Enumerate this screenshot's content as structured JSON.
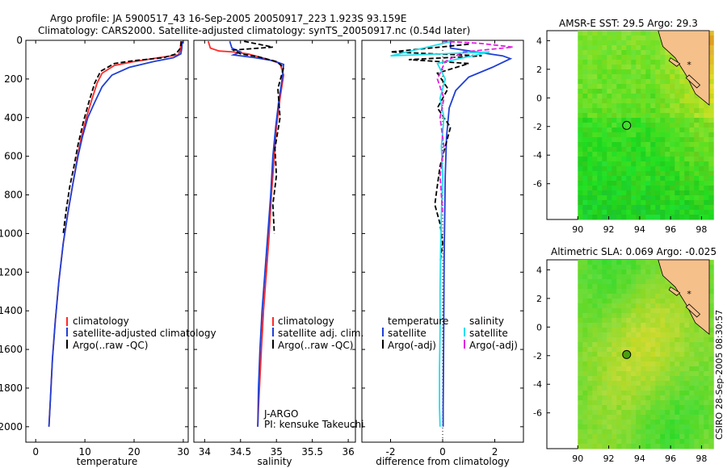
{
  "header": {
    "line1": "Argo profile: JA 5900517_43 16-Sep-2005 20050917_223 1.923S 93.159E",
    "line2": "Climatology: CARS2000. Satellite-adjusted climatology: synTS_20050917.nc (0.54d later)"
  },
  "side_label": "CSIRO 28-Sep-2005 08:30:57",
  "colors": {
    "climatology": "#ff2a2a",
    "satellite": "#1f3fd6",
    "argo": "#000000",
    "cyan": "#1fe0ee",
    "magenta": "#e020e0"
  },
  "chart_data": [
    {
      "type": "line",
      "id": "temperature",
      "xlabel": "temperature",
      "ylabel": "",
      "xlim": [
        -2,
        31
      ],
      "ylim": [
        2080,
        0
      ],
      "xticks": [
        0,
        10,
        20,
        30
      ],
      "yticks": [
        0,
        200,
        400,
        600,
        800,
        1000,
        1200,
        1400,
        1600,
        1800,
        2000
      ],
      "legend": [
        "climatology",
        "satellite-adjusted climatology",
        "Argo(..raw -QC)"
      ],
      "series": [
        {
          "name": "climatology",
          "color": "red",
          "style": "solid",
          "x": [
            29.5,
            29.4,
            29.0,
            25,
            20,
            16,
            13.5,
            12.5,
            11.5,
            10.3,
            9.3,
            8.5,
            7.5,
            6.5,
            5.6,
            4.7,
            4.0,
            3.4,
            3.0,
            2.7
          ],
          "y": [
            5,
            50,
            75,
            90,
            110,
            130,
            170,
            220,
            300,
            400,
            500,
            600,
            750,
            900,
            1050,
            1250,
            1450,
            1650,
            1850,
            2000
          ]
        },
        {
          "name": "satellite-adjusted climatology",
          "color": "blue",
          "style": "solid",
          "x": [
            29.8,
            29.7,
            29.5,
            28,
            24,
            19,
            15.5,
            13.5,
            12.0,
            10.6,
            9.5,
            8.6,
            7.5,
            6.5,
            5.6,
            4.7,
            4.0,
            3.4,
            3.0,
            2.7
          ],
          "y": [
            5,
            40,
            70,
            90,
            110,
            140,
            180,
            240,
            320,
            400,
            500,
            600,
            750,
            900,
            1050,
            1250,
            1450,
            1650,
            1850,
            2000
          ]
        },
        {
          "name": "Argo(..raw -QC)",
          "color": "black",
          "style": "dashed",
          "x": [
            29.6,
            29.4,
            28.5,
            26,
            20,
            16,
            13.2,
            12.0,
            10.8,
            9.7,
            8.6,
            7.8,
            6.9,
            6.2,
            5.6
          ],
          "y": [
            5,
            40,
            70,
            90,
            105,
            120,
            160,
            220,
            320,
            420,
            540,
            650,
            760,
            880,
            1000
          ]
        }
      ]
    },
    {
      "type": "line",
      "id": "salinity",
      "xlabel": "salinity",
      "xlim": [
        33.85,
        36.1
      ],
      "ylim": [
        2080,
        0
      ],
      "xticks": [
        34,
        34.5,
        35,
        35.5,
        36
      ],
      "legend": [
        "climatology",
        "satellite adj. clim.",
        "Argo(..raw -QC)"
      ],
      "annotation": [
        "J-ARGO",
        "PI: kensuke Takeuchi"
      ],
      "series": [
        {
          "name": "climatology",
          "color": "red",
          "style": "solid",
          "x": [
            34.05,
            34.08,
            34.2,
            34.4,
            34.6,
            34.85,
            35.05,
            35.1,
            35.05,
            35.0,
            34.97,
            34.93,
            34.9,
            34.86,
            34.82,
            34.79,
            34.77,
            34.75,
            34.74
          ],
          "y": [
            5,
            40,
            55,
            60,
            70,
            95,
            120,
            180,
            300,
            450,
            600,
            800,
            1000,
            1200,
            1400,
            1600,
            1750,
            1900,
            2000
          ]
        },
        {
          "name": "satellite adj. clim.",
          "color": "blue",
          "style": "solid",
          "x": [
            34.35,
            34.38,
            34.5,
            34.4,
            34.7,
            34.95,
            35.1,
            35.08,
            35.03,
            34.99,
            34.95,
            34.92,
            34.88,
            34.84,
            34.8,
            34.77,
            34.75,
            34.74
          ],
          "y": [
            5,
            40,
            60,
            75,
            90,
            105,
            125,
            200,
            320,
            450,
            600,
            800,
            1000,
            1200,
            1400,
            1600,
            1800,
            2000
          ]
        },
        {
          "name": "Argo(..raw -QC)",
          "color": "black",
          "style": "dashed",
          "x": [
            34.55,
            34.75,
            34.95,
            34.4,
            34.5,
            34.75,
            35.0,
            35.1,
            35.02,
            35.05,
            34.98,
            35.0,
            34.95,
            34.97
          ],
          "y": [
            5,
            20,
            35,
            50,
            70,
            85,
            110,
            140,
            250,
            400,
            560,
            700,
            850,
            1000
          ]
        }
      ]
    },
    {
      "type": "line",
      "id": "difference",
      "xlabel": "difference from climatology",
      "xlim": [
        -3.1,
        3.1
      ],
      "ylim": [
        2080,
        0
      ],
      "xticks": [
        -2,
        0,
        2
      ],
      "legend_left_title": "temperature",
      "legend_right_title": "salinity",
      "legend": [
        "satellite",
        "Argo(-adj)",
        "satellite",
        "Argo(-adj)"
      ],
      "series": [
        {
          "name": "temperature satellite",
          "color": "blue",
          "style": "solid",
          "x": [
            0.3,
            0.3,
            2.3,
            2.6,
            1.9,
            1.0,
            0.5,
            0.25,
            0.15,
            0.1,
            0.08,
            0.06,
            0.05,
            0.04,
            0.03,
            0.02,
            0.02
          ],
          "y": [
            5,
            40,
            80,
            95,
            140,
            190,
            260,
            350,
            500,
            700,
            900,
            1100,
            1300,
            1500,
            1700,
            1900,
            2000
          ]
        },
        {
          "name": "temperature Argo(-adj)",
          "color": "black",
          "style": "dashed",
          "x": [
            1.0,
            -2.0,
            1.5,
            -1.3,
            1.0,
            -0.2,
            0.2,
            -0.2,
            0.3,
            0.1,
            -0.1,
            -0.2,
            -0.3,
            -0.1,
            0.0,
            -0.1
          ],
          "y": [
            20,
            60,
            80,
            100,
            120,
            170,
            250,
            350,
            450,
            550,
            650,
            750,
            850,
            950,
            1050,
            1150
          ]
        },
        {
          "name": "salinity satellite",
          "color": "cyan",
          "style": "solid",
          "x": [
            0.35,
            -2.0,
            1.8,
            -0.2,
            0.1,
            -0.1,
            0.05,
            -0.05,
            0.0,
            -0.05,
            -0.08,
            -0.1,
            -0.1,
            -0.12,
            -0.12,
            -0.1
          ],
          "y": [
            5,
            80,
            60,
            120,
            200,
            300,
            400,
            550,
            700,
            900,
            1100,
            1300,
            1500,
            1700,
            1900,
            2000
          ]
        },
        {
          "name": "salinity Argo(-adj)",
          "color": "magenta",
          "style": "dashed",
          "x": [
            0.0,
            1.4,
            2.7,
            0.8,
            0.1,
            -0.2,
            0.05,
            -0.1,
            0.05,
            -0.1,
            0.0
          ],
          "y": [
            5,
            15,
            35,
            60,
            110,
            200,
            300,
            400,
            550,
            700,
            900
          ]
        }
      ]
    },
    {
      "type": "heatmap",
      "id": "sst-map",
      "title": "AMSR-E SST: 29.5 Argo: 29.3",
      "xlim": [
        88,
        98.5
      ],
      "ylim": [
        -8.5,
        4.7
      ],
      "xticks": [
        90,
        92,
        94,
        96,
        98
      ],
      "yticks": [
        -6,
        -4,
        -2,
        0,
        2,
        4
      ],
      "argo_position": [
        93.159,
        -1.923
      ]
    },
    {
      "type": "heatmap",
      "id": "sla-map",
      "title": "Altimetric SLA: 0.069 Argo: -0.025",
      "xlim": [
        88,
        98.5
      ],
      "ylim": [
        -8.5,
        4.7
      ],
      "xticks": [
        90,
        92,
        94,
        96,
        98
      ],
      "yticks": [
        -6,
        -4,
        -2,
        0,
        2,
        4
      ],
      "argo_position": [
        93.159,
        -1.923
      ]
    }
  ]
}
